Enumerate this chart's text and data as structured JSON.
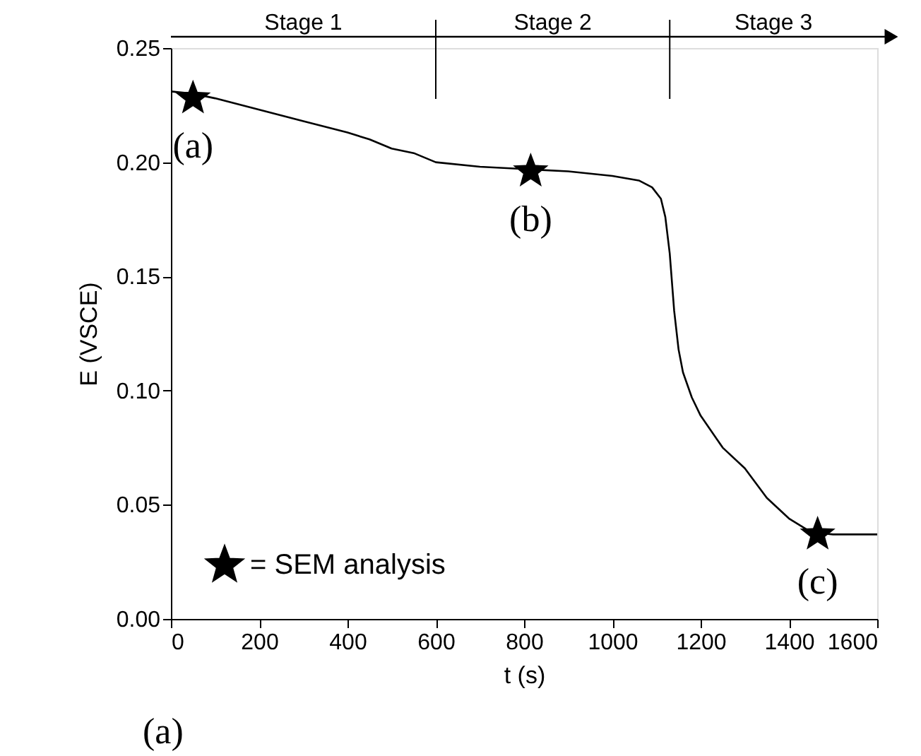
{
  "chart_data": {
    "type": "line",
    "xlabel": "t (s)",
    "ylabel": "E (VSCE)",
    "xlim": [
      0,
      1600
    ],
    "xticks": [
      0,
      200,
      400,
      600,
      800,
      1000,
      1200,
      1400,
      1600
    ],
    "ylim": [
      0,
      0.25
    ],
    "yticks": [
      {
        "value": 0,
        "label": "0.00"
      },
      {
        "value": 0.05,
        "label": "0.05"
      },
      {
        "value": 0.1,
        "label": "0.10"
      },
      {
        "value": 0.15,
        "label": "0.15"
      },
      {
        "value": 0.2,
        "label": "0.20"
      },
      {
        "value": 0.25,
        "label": "0.25"
      }
    ],
    "grid": false,
    "legend": "bottom left",
    "series": [
      {
        "color": "#000000",
        "marker": "none",
        "line_style": "solid",
        "x": [
          0,
          50,
          100,
          200,
          300,
          400,
          450,
          500,
          550,
          600,
          700,
          800,
          900,
          1000,
          1060,
          1090,
          1110,
          1120,
          1130,
          1140,
          1150,
          1160,
          1180,
          1200,
          1250,
          1300,
          1350,
          1400,
          1450,
          1500,
          1550,
          1600
        ],
        "values": [
          0.231,
          0.23,
          0.228,
          0.223,
          0.218,
          0.213,
          0.21,
          0.206,
          0.204,
          0.2,
          0.198,
          0.197,
          0.196,
          0.194,
          0.192,
          0.189,
          0.184,
          0.176,
          0.16,
          0.135,
          0.118,
          0.108,
          0.097,
          0.089,
          0.075,
          0.066,
          0.053,
          0.044,
          0.038,
          0.037,
          0.037,
          0.037
        ]
      },
      {
        "type": "scatter",
        "name": "= SEM analysis",
        "color": "#000000",
        "marker": "star",
        "x": [
          50,
          815,
          1465
        ],
        "values": [
          0.228,
          0.196,
          0.037
        ]
      }
    ],
    "ref_lines": [
      {
        "axis": "x",
        "value": 600
      },
      {
        "axis": "x",
        "value": 1130
      }
    ],
    "annotations": [
      "Stage 1",
      "Stage 2",
      "Stage 3",
      {
        "text": "(a)",
        "x": 50,
        "y": 0.228
      },
      {
        "text": "(b)",
        "x": 815,
        "y": 0.196
      },
      {
        "text": "(c)",
        "x": 1465,
        "y": 0.037
      },
      "(a)"
    ]
  }
}
